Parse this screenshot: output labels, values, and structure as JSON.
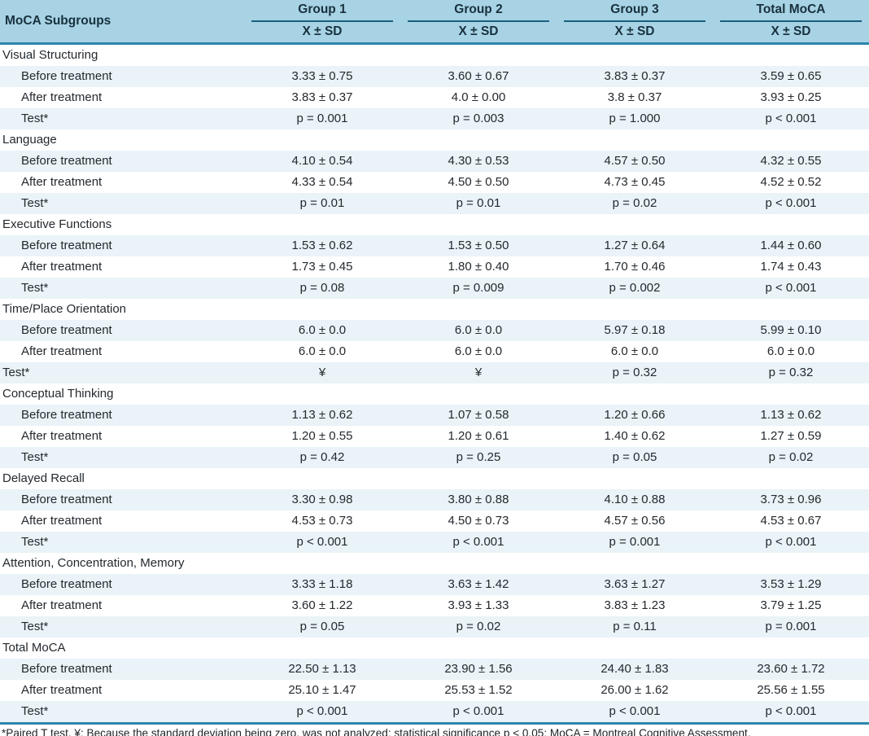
{
  "table": {
    "col0_header": "MoCA Subgroups",
    "group_headers": [
      "Group 1",
      "Group 2",
      "Group 3",
      "Total MoCA"
    ],
    "subheader": "X ± SD",
    "sections": [
      {
        "name": "Visual Structuring",
        "rows": [
          {
            "label": "Before treatment",
            "indent": true,
            "values": [
              "3.33 ± 0.75",
              "3.60 ± 0.67",
              "3.83 ± 0.37",
              "3.59 ± 0.65"
            ]
          },
          {
            "label": "After treatment",
            "indent": true,
            "values": [
              "3.83 ± 0.37",
              "4.0 ± 0.00",
              "3.8 ± 0.37",
              "3.93 ± 0.25"
            ]
          },
          {
            "label": "Test*",
            "indent": true,
            "values": [
              "p = 0.001",
              "p = 0.003",
              "p = 1.000",
              "p < 0.001"
            ]
          }
        ]
      },
      {
        "name": "Language",
        "rows": [
          {
            "label": "Before treatment",
            "indent": true,
            "values": [
              "4.10 ± 0.54",
              "4.30 ± 0.53",
              "4.57 ± 0.50",
              "4.32 ± 0.55"
            ]
          },
          {
            "label": "After treatment",
            "indent": true,
            "values": [
              "4.33 ± 0.54",
              "4.50 ± 0.50",
              "4.73 ± 0.45",
              "4.52 ± 0.52"
            ]
          },
          {
            "label": "Test*",
            "indent": true,
            "values": [
              "p = 0.01",
              "p = 0.01",
              "p = 0.02",
              "p < 0.001"
            ]
          }
        ]
      },
      {
        "name": "Executive Functions",
        "rows": [
          {
            "label": "Before treatment",
            "indent": true,
            "values": [
              "1.53 ± 0.62",
              "1.53 ± 0.50",
              "1.27 ± 0.64",
              "1.44 ± 0.60"
            ]
          },
          {
            "label": "After treatment",
            "indent": true,
            "values": [
              "1.73 ± 0.45",
              "1.80 ± 0.40",
              "1.70 ± 0.46",
              "1.74 ± 0.43"
            ]
          },
          {
            "label": "Test*",
            "indent": true,
            "values": [
              "p = 0.08",
              "p = 0.009",
              "p = 0.002",
              "p < 0.001"
            ]
          }
        ]
      },
      {
        "name": "Time/Place Orientation",
        "rows": [
          {
            "label": "Before treatment",
            "indent": true,
            "values": [
              "6.0 ± 0.0",
              "6.0 ± 0.0",
              "5.97 ± 0.18",
              "5.99 ± 0.10"
            ]
          },
          {
            "label": "After treatment",
            "indent": true,
            "values": [
              "6.0 ± 0.0",
              "6.0 ± 0.0",
              "6.0 ± 0.0",
              "6.0 ± 0.0"
            ]
          },
          {
            "label": "Test*",
            "indent": false,
            "values": [
              "¥",
              "¥",
              "p = 0.32",
              "p = 0.32"
            ]
          }
        ]
      },
      {
        "name": "Conceptual Thinking",
        "rows": [
          {
            "label": "Before treatment",
            "indent": true,
            "values": [
              "1.13 ± 0.62",
              "1.07 ± 0.58",
              "1.20 ± 0.66",
              "1.13 ± 0.62"
            ]
          },
          {
            "label": "After treatment",
            "indent": true,
            "values": [
              "1.20 ± 0.55",
              "1.20 ± 0.61",
              "1.40 ± 0.62",
              "1.27 ± 0.59"
            ]
          },
          {
            "label": "Test*",
            "indent": true,
            "values": [
              "p = 0.42",
              "p = 0.25",
              "p = 0.05",
              "p = 0.02"
            ]
          }
        ]
      },
      {
        "name": "Delayed Recall",
        "rows": [
          {
            "label": "Before treatment",
            "indent": true,
            "values": [
              "3.30 ± 0.98",
              "3.80 ± 0.88",
              "4.10 ± 0.88",
              "3.73 ± 0.96"
            ]
          },
          {
            "label": "After treatment",
            "indent": true,
            "values": [
              "4.53 ± 0.73",
              "4.50 ± 0.73",
              "4.57 ± 0.56",
              "4.53 ± 0.67"
            ]
          },
          {
            "label": "Test*",
            "indent": true,
            "values": [
              "p < 0.001",
              "p < 0.001",
              "p = 0.001",
              "p < 0.001"
            ]
          }
        ]
      },
      {
        "name": "Attention, Concentration, Memory",
        "rows": [
          {
            "label": "Before treatment",
            "indent": true,
            "values": [
              "3.33 ± 1.18",
              "3.63 ± 1.42",
              "3.63 ± 1.27",
              "3.53 ± 1.29"
            ]
          },
          {
            "label": "After treatment",
            "indent": true,
            "values": [
              "3.60 ± 1.22",
              "3.93 ± 1.33",
              "3.83 ± 1.23",
              "3.79 ± 1.25"
            ]
          },
          {
            "label": "Test*",
            "indent": true,
            "values": [
              "p = 0.05",
              "p = 0.02",
              "p = 0.11",
              "p = 0.001"
            ]
          }
        ]
      },
      {
        "name": "Total MoCA",
        "rows": [
          {
            "label": "Before treatment",
            "indent": true,
            "values": [
              "22.50 ± 1.13",
              "23.90 ± 1.56",
              "24.40 ± 1.83",
              "23.60 ± 1.72"
            ]
          },
          {
            "label": "After treatment",
            "indent": true,
            "values": [
              "25.10 ± 1.47",
              "25.53 ± 1.52",
              "26.00 ± 1.62",
              "25.56 ± 1.55"
            ]
          },
          {
            "label": "Test*",
            "indent": true,
            "values": [
              "p < 0.001",
              "p < 0.001",
              "p < 0.001",
              "p < 0.001"
            ]
          }
        ]
      }
    ],
    "footnote": "*Paired T test, ¥: Because the standard deviation being zero, was not analyzed; statistical significance p < 0.05; MoCA = Montreal Cognitive Assessment."
  },
  "colors": {
    "header_bg": "#a7d3e5",
    "stripe_bg": "#e9f3f8",
    "group_underline": "#1b5e7d",
    "header_rule": "#2e86ae",
    "text": "#24292e"
  }
}
